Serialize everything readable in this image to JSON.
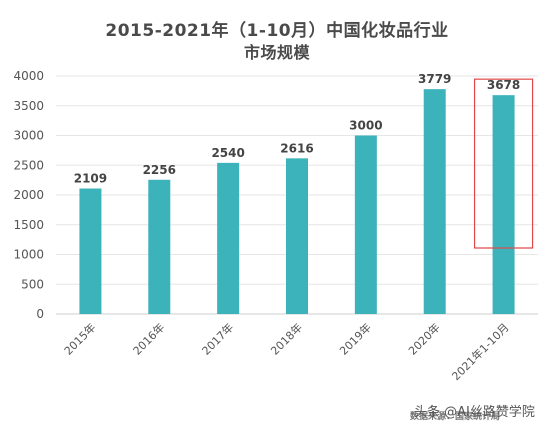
{
  "chart_data": {
    "type": "bar",
    "title": "2015-2021年（1-10月）中国化妆品行业",
    "subtitle": "市场规模",
    "categories": [
      "2015年",
      "2016年",
      "2017年",
      "2018年",
      "2019年",
      "2020年",
      "2021年1-10月"
    ],
    "values": [
      2109,
      2256,
      2540,
      2616,
      3000,
      3779,
      3678
    ],
    "ylim": [
      0,
      4000
    ],
    "yticks": [
      0,
      500,
      1000,
      1500,
      2000,
      2500,
      3000,
      3500,
      4000
    ],
    "grid": true,
    "legend": "none",
    "bar_color": "#3cb3bb",
    "highlight": {
      "category": "2021年1-10月",
      "color": "#e04848"
    }
  },
  "footer": {
    "source": "数据来源：国家统计局",
    "watermark": "头条 @AI丝路赞学院"
  }
}
